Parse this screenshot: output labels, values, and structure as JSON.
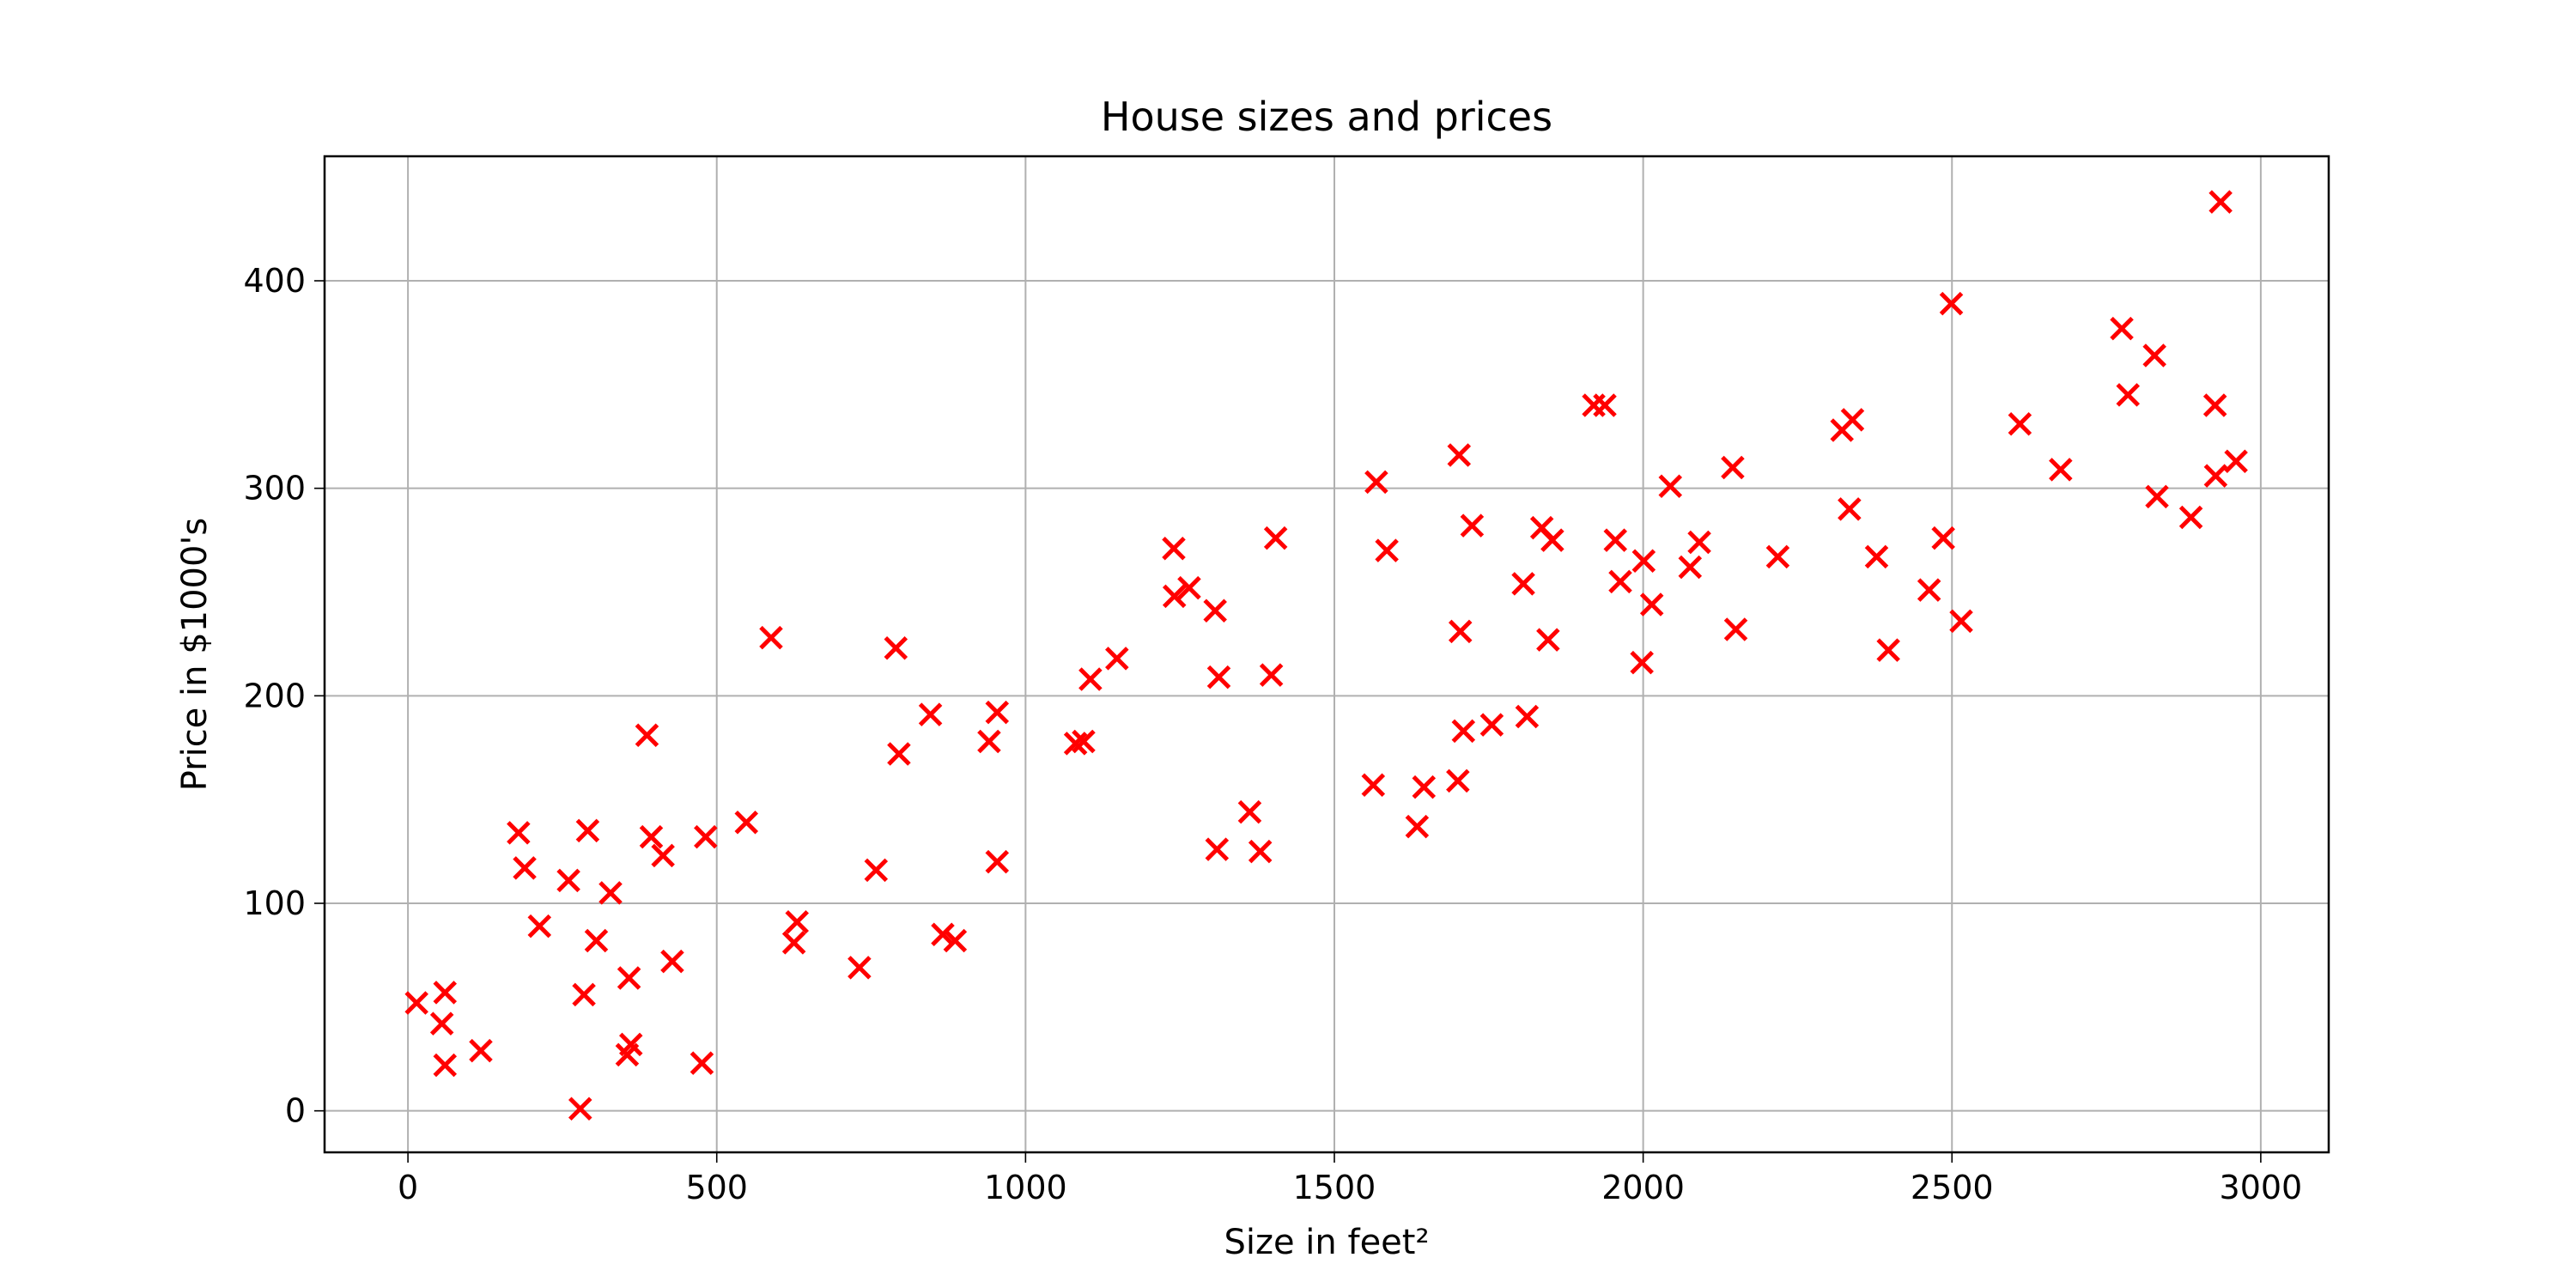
{
  "chart_data": {
    "type": "scatter",
    "title": "House sizes and prices",
    "xlabel": "Size in feet²",
    "ylabel": "Price in $1000's",
    "xlim": [
      -135,
      3110
    ],
    "ylim": [
      -20,
      460
    ],
    "xticks": [
      0,
      500,
      1000,
      1500,
      2000,
      2500,
      3000
    ],
    "yticks": [
      0,
      100,
      200,
      300,
      400
    ],
    "grid": true,
    "legend": "none",
    "marker": "x",
    "marker_color": "#ff0000",
    "points": [
      [
        14,
        52
      ],
      [
        55,
        42
      ],
      [
        60,
        57
      ],
      [
        60,
        22
      ],
      [
        118,
        29
      ],
      [
        179,
        134
      ],
      [
        189,
        117
      ],
      [
        213,
        89
      ],
      [
        260,
        111
      ],
      [
        279,
        1
      ],
      [
        285,
        56
      ],
      [
        291,
        135
      ],
      [
        305,
        82
      ],
      [
        328,
        105
      ],
      [
        355,
        27
      ],
      [
        358,
        64
      ],
      [
        361,
        32
      ],
      [
        387,
        181
      ],
      [
        394,
        132
      ],
      [
        413,
        123
      ],
      [
        428,
        72
      ],
      [
        476,
        23
      ],
      [
        482,
        132
      ],
      [
        548,
        139
      ],
      [
        588,
        228
      ],
      [
        625,
        81
      ],
      [
        630,
        91
      ],
      [
        731,
        69
      ],
      [
        758,
        116
      ],
      [
        790,
        223
      ],
      [
        795,
        172
      ],
      [
        846,
        191
      ],
      [
        866,
        85
      ],
      [
        886,
        82
      ],
      [
        941,
        178
      ],
      [
        954,
        192
      ],
      [
        954,
        120
      ],
      [
        1081,
        177
      ],
      [
        1094,
        178
      ],
      [
        1105,
        208
      ],
      [
        1148,
        218
      ],
      [
        1240,
        271
      ],
      [
        1241,
        248
      ],
      [
        1265,
        252
      ],
      [
        1307,
        241
      ],
      [
        1310,
        126
      ],
      [
        1313,
        209
      ],
      [
        1363,
        144
      ],
      [
        1380,
        125
      ],
      [
        1398,
        210
      ],
      [
        1405,
        276
      ],
      [
        1563,
        157
      ],
      [
        1568,
        303
      ],
      [
        1585,
        270
      ],
      [
        1634,
        137
      ],
      [
        1645,
        156
      ],
      [
        1700,
        159
      ],
      [
        1702,
        316
      ],
      [
        1704,
        231
      ],
      [
        1709,
        183
      ],
      [
        1723,
        282
      ],
      [
        1755,
        186
      ],
      [
        1806,
        254
      ],
      [
        1812,
        190
      ],
      [
        1836,
        281
      ],
      [
        1846,
        227
      ],
      [
        1853,
        275
      ],
      [
        1920,
        340
      ],
      [
        1938,
        340
      ],
      [
        1955,
        275
      ],
      [
        1963,
        255
      ],
      [
        1998,
        216
      ],
      [
        2001,
        265
      ],
      [
        2014,
        244
      ],
      [
        2044,
        301
      ],
      [
        2076,
        262
      ],
      [
        2091,
        274
      ],
      [
        2145,
        310
      ],
      [
        2150,
        232
      ],
      [
        2218,
        267
      ],
      [
        2322,
        328
      ],
      [
        2334,
        290
      ],
      [
        2339,
        333
      ],
      [
        2378,
        267
      ],
      [
        2397,
        222
      ],
      [
        2463,
        251
      ],
      [
        2486,
        276
      ],
      [
        2499,
        389
      ],
      [
        2515,
        236
      ],
      [
        2610,
        331
      ],
      [
        2676,
        309
      ],
      [
        2775,
        377
      ],
      [
        2785,
        345
      ],
      [
        2828,
        364
      ],
      [
        2832,
        296
      ],
      [
        2887,
        286
      ],
      [
        2926,
        340
      ],
      [
        2927,
        306
      ],
      [
        2935,
        438
      ],
      [
        2960,
        313
      ]
    ]
  }
}
